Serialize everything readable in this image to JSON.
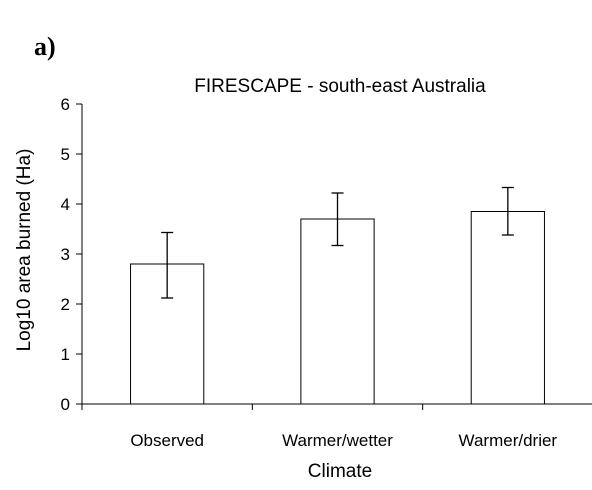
{
  "panel_label": "a)",
  "chart_data": {
    "type": "bar",
    "title": "FIRESCAPE - south-east Australia",
    "xlabel": "Climate",
    "ylabel": "Log10 area burned (Ha)",
    "categories": [
      "Observed",
      "Warmer/wetter",
      "Warmer/drier"
    ],
    "values": [
      2.8,
      3.7,
      3.85
    ],
    "error_low": [
      2.12,
      3.17,
      3.38
    ],
    "error_high": [
      3.43,
      4.22,
      4.33
    ],
    "ylim": [
      0,
      6
    ],
    "yticks": [
      0,
      1,
      2,
      3,
      4,
      5,
      6
    ],
    "grid": false,
    "legend": "none",
    "bar_fill": "#ffffff",
    "bar_stroke": "#000000"
  }
}
